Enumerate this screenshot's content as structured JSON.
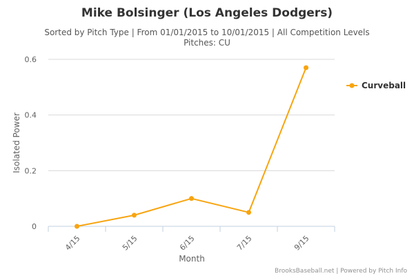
{
  "chart_data": {
    "type": "line",
    "title": "Mike Bolsinger (Los Angeles Dodgers)",
    "subtitle_line1": "Sorted by Pitch Type | From 01/01/2015 to 10/01/2015 | All Competition Levels",
    "subtitle_line2": "Pitches: CU",
    "xlabel": "Month",
    "ylabel": "Isolated Power",
    "categories": [
      "4/15",
      "5/15",
      "6/15",
      "7/15",
      "9/15"
    ],
    "y_ticks": [
      "0",
      "0.2",
      "0.4",
      "0.6"
    ],
    "ylim": [
      0,
      0.6
    ],
    "grid": true,
    "legend_position": "right",
    "series": [
      {
        "name": "Curveball",
        "color": "#f8a40e",
        "values": [
          0.0,
          0.04,
          0.1,
          0.05,
          0.57
        ]
      }
    ],
    "credits": "BrooksBaseball.net | Powered by Pitch Info"
  }
}
